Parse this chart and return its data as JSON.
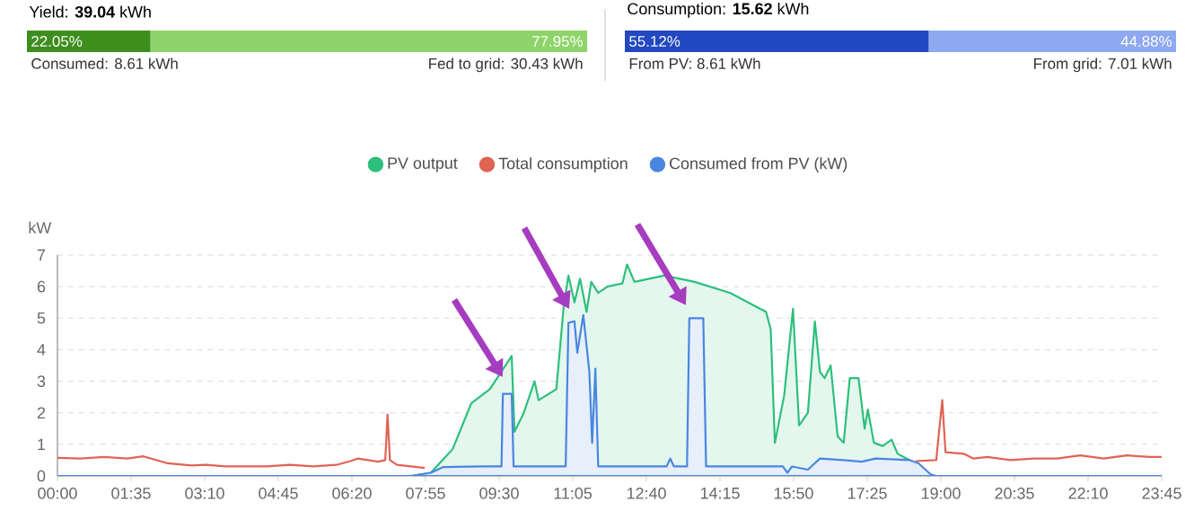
{
  "chart_data": [
    {
      "type": "bar",
      "orientation": "horizontal",
      "stacked": true,
      "title": "Yield: **39.04** kWh",
      "categories": [
        null
      ],
      "xlim": [
        0,
        100
      ],
      "series": [
        {
          "color": "#3e8e1e",
          "values": [
            22.05
          ],
          "value_labels": [
            "22.05%"
          ]
        },
        {
          "color": "#8fd46a",
          "values": [
            77.95
          ],
          "value_labels": [
            "77.95%"
          ]
        }
      ],
      "annotations": [
        "Consumed: 8.61 kWh",
        "Fed to grid: 30.43 kWh"
      ]
    },
    {
      "type": "bar",
      "orientation": "horizontal",
      "stacked": true,
      "title": "Consumption: **15.62** kWh",
      "categories": [
        null
      ],
      "xlim": [
        0,
        100
      ],
      "series": [
        {
          "color": "#2349c0",
          "values": [
            55.12
          ],
          "value_labels": [
            "55.12%"
          ]
        },
        {
          "color": "#8fa9f0",
          "values": [
            44.88
          ],
          "value_labels": [
            "44.88%"
          ]
        }
      ],
      "annotations": [
        "From PV: 8.61 kWh",
        "From grid: 7.01 kWh"
      ]
    },
    {
      "type": "line",
      "ylabel": "kW",
      "xlim": [
        0,
        23.75
      ],
      "ylim": [
        0,
        7
      ],
      "yticks": [
        0,
        1,
        2,
        3,
        4,
        5,
        6,
        7
      ],
      "xticks": [
        {
          "value": 0,
          "label": "00:00"
        },
        {
          "value": 1.583,
          "label": "01:35"
        },
        {
          "value": 3.167,
          "label": "03:10"
        },
        {
          "value": 4.75,
          "label": "04:45"
        },
        {
          "value": 6.333,
          "label": "06:20"
        },
        {
          "value": 7.917,
          "label": "07:55"
        },
        {
          "value": 9.5,
          "label": "09:30"
        },
        {
          "value": 11.083,
          "label": "11:05"
        },
        {
          "value": 12.667,
          "label": "12:40"
        },
        {
          "value": 14.25,
          "label": "14:15"
        },
        {
          "value": 15.833,
          "label": "15:50"
        },
        {
          "value": 17.417,
          "label": "17:25"
        },
        {
          "value": 19,
          "label": "19:00"
        },
        {
          "value": 20.583,
          "label": "20:35"
        },
        {
          "value": 22.167,
          "label": "22:10"
        },
        {
          "value": 23.75,
          "label": "23:45"
        }
      ],
      "grid": "y",
      "legend": "top",
      "marker": "none",
      "series": [
        {
          "name": "PV output",
          "type": "area",
          "color": "#2dbf7c",
          "x": [
            7.6,
            8.03,
            8.5,
            8.9,
            9.3,
            9.77,
            9.83,
            10.03,
            10.26,
            10.35,
            10.73,
            10.89,
            10.99,
            11.12,
            11.24,
            11.38,
            11.48,
            11.63,
            11.83,
            12.15,
            12.25,
            12.41,
            13.05,
            13.7,
            14.47,
            14.98,
            15.24,
            15.34,
            15.43,
            15.63,
            15.82,
            15.95,
            16.14,
            16.29,
            16.4,
            16.5,
            16.63,
            16.78,
            16.91,
            17.04,
            17.23,
            17.36,
            17.43,
            17.56,
            17.75,
            17.94,
            18.07,
            18.33,
            18.65,
            18.84
          ],
          "values": [
            0,
            0.1,
            0.85,
            2.3,
            2.75,
            3.8,
            1.4,
            2.0,
            3.0,
            2.4,
            2.75,
            5.4,
            6.35,
            5.5,
            6.25,
            5.2,
            6.15,
            5.8,
            6.0,
            6.1,
            6.7,
            6.15,
            6.35,
            6.15,
            5.8,
            5.4,
            5.2,
            4.65,
            1.05,
            2.55,
            5.3,
            1.6,
            2.0,
            4.9,
            3.3,
            3.1,
            3.5,
            1.25,
            1.05,
            3.1,
            3.1,
            1.5,
            2.1,
            1.05,
            0.95,
            1.15,
            0.7,
            0.5,
            0.1,
            0
          ]
        },
        {
          "name": "Total consumption",
          "type": "line",
          "color": "#e06353",
          "x": [
            0,
            0.5,
            1,
            1.5,
            1.85,
            2.37,
            2.88,
            3.2,
            3.6,
            3.9,
            4.5,
            5,
            5.5,
            6,
            6.3,
            6.45,
            6.9,
            7.05,
            7.1,
            7.15,
            7.3,
            7.6,
            7.9,
            12,
            18.46,
            18.9,
            19.03,
            19.1,
            19.5,
            19.7,
            20,
            20.5,
            21,
            21.5,
            22,
            22.5,
            23,
            23.5,
            23.75
          ],
          "values": [
            0.57,
            0.55,
            0.6,
            0.55,
            0.62,
            0.4,
            0.33,
            0.35,
            0.3,
            0.3,
            0.3,
            0.35,
            0.3,
            0.35,
            0.47,
            0.55,
            0.45,
            0.5,
            1.95,
            0.5,
            0.35,
            0.3,
            0.25,
            null,
            0.47,
            0.5,
            2.4,
            0.75,
            0.7,
            0.55,
            0.6,
            0.5,
            0.55,
            0.55,
            0.65,
            0.55,
            0.65,
            0.6,
            0.6
          ]
        },
        {
          "name": "Consumed from PV (kW)",
          "type": "area",
          "color": "#4a86e0",
          "x": [
            0,
            7.6,
            8.03,
            8.29,
            9.19,
            9.55,
            9.58,
            9.77,
            9.81,
            10.93,
            10.99,
            11.12,
            11.18,
            11.31,
            11.44,
            11.5,
            11.57,
            11.63,
            13.1,
            13.18,
            13.26,
            13.54,
            13.59,
            13.89,
            13.95,
            15.6,
            15.7,
            15.8,
            16.14,
            16.4,
            16.9,
            17.3,
            17.6,
            18.33,
            18.52,
            18.78,
            18.9,
            23.75
          ],
          "values": [
            0,
            0,
            0.1,
            0.28,
            0.3,
            0.3,
            2.6,
            2.6,
            0.3,
            0.3,
            4.85,
            4.9,
            3.9,
            5.1,
            3.3,
            1.05,
            3.4,
            0.3,
            0.3,
            0.55,
            0.3,
            0.3,
            5.0,
            5.0,
            0.3,
            0.3,
            0.1,
            0.3,
            0.2,
            0.55,
            0.5,
            0.45,
            0.55,
            0.5,
            0.4,
            0.05,
            0,
            0
          ]
        }
      ]
    }
  ]
}
